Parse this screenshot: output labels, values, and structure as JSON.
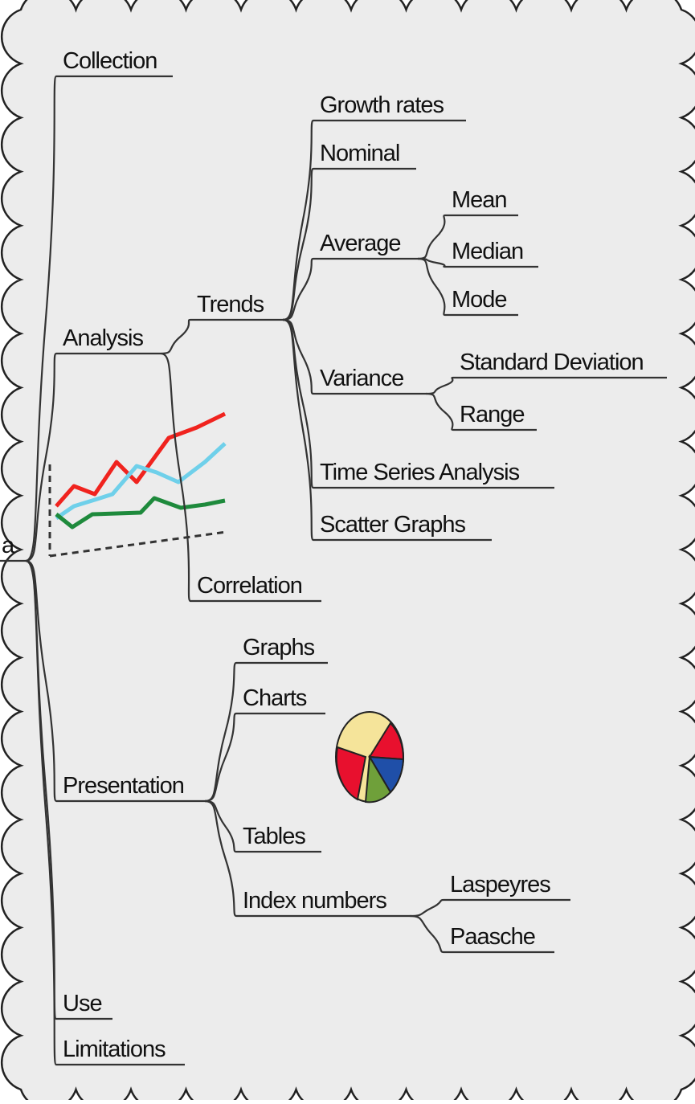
{
  "root": {
    "label": "a",
    "children": [
      {
        "label": "Collection",
        "children": []
      },
      {
        "label": "Analysis",
        "children": [
          {
            "label": "Trends",
            "children": [
              {
                "label": "Growth rates",
                "children": []
              },
              {
                "label": "Nominal",
                "children": []
              },
              {
                "label": "Average",
                "children": [
                  {
                    "label": "Mean",
                    "children": []
                  },
                  {
                    "label": "Median",
                    "children": []
                  },
                  {
                    "label": "Mode",
                    "children": []
                  }
                ]
              },
              {
                "label": "Variance",
                "children": [
                  {
                    "label": "Standard Deviation",
                    "children": []
                  },
                  {
                    "label": "Range",
                    "children": []
                  }
                ]
              },
              {
                "label": "Time Series Analysis",
                "children": []
              },
              {
                "label": "Scatter Graphs",
                "children": []
              }
            ]
          },
          {
            "label": "Correlation",
            "children": []
          }
        ]
      },
      {
        "label": "Presentation",
        "children": [
          {
            "label": "Graphs",
            "children": []
          },
          {
            "label": "Charts",
            "children": []
          },
          {
            "label": "Tables",
            "children": []
          },
          {
            "label": "Index numbers",
            "children": [
              {
                "label": "Laspeyres",
                "children": []
              },
              {
                "label": "Paasche",
                "children": []
              }
            ]
          }
        ]
      },
      {
        "label": "Use",
        "children": []
      },
      {
        "label": "Limitations",
        "children": []
      }
    ]
  }
}
